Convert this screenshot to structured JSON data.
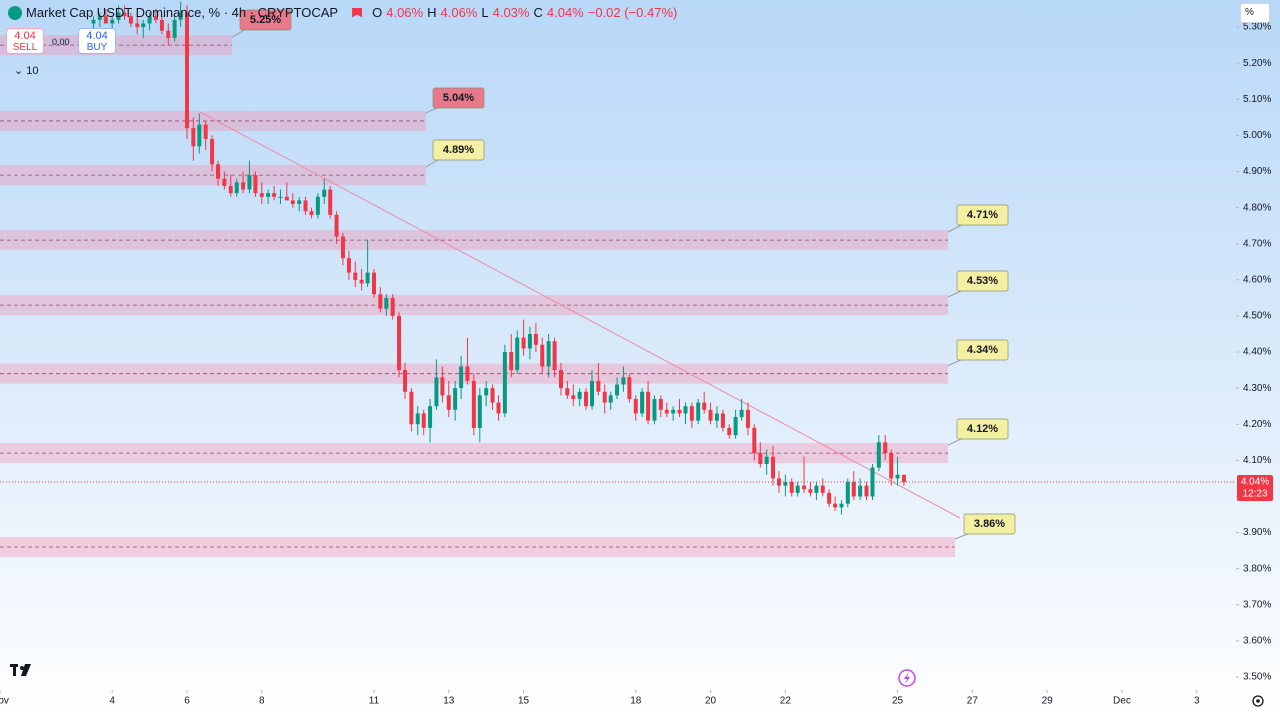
{
  "header": {
    "title": "Market Cap USDT Dominance, % · 4h · CRYPTOCAP",
    "ohlc": [
      "O",
      "4.06%",
      "H",
      "4.06%",
      "L",
      "4.03%",
      "C",
      "4.04%",
      "−0.02 (−0.47%)"
    ]
  },
  "trade": {
    "sell_price": "4.04",
    "sell": "SELL",
    "spread": "0.00",
    "buy_price": "4.04",
    "buy": "BUY",
    "quantity": "10"
  },
  "scale_button": "%",
  "chart_data": {
    "type": "candlestick",
    "up_color": "#089981",
    "down_color": "#f23645",
    "xlim": [
      1,
      34.05
    ],
    "ylim": [
      3.464,
      5.375
    ],
    "xticks": [
      {
        "value": 1,
        "label": "Nov"
      },
      4,
      6,
      8,
      11,
      13,
      15,
      18,
      20,
      22,
      25,
      27,
      29,
      {
        "value": 31,
        "label": "Dec"
      },
      {
        "value": 33,
        "label": "3"
      }
    ],
    "yticks": [
      {
        "value": 5.3,
        "label": "5.30%"
      },
      {
        "value": 5.2,
        "label": "5.20%"
      },
      {
        "value": 5.1,
        "label": "5.10%"
      },
      {
        "value": 5.0,
        "label": "5.00%"
      },
      {
        "value": 4.9,
        "label": "4.90%"
      },
      {
        "value": 4.8,
        "label": "4.80%"
      },
      {
        "value": 4.7,
        "label": "4.70%"
      },
      {
        "value": 4.6,
        "label": "4.60%"
      },
      {
        "value": 4.5,
        "label": "4.50%"
      },
      {
        "value": 4.4,
        "label": "4.40%"
      },
      {
        "value": 4.3,
        "label": "4.30%"
      },
      {
        "value": 4.2,
        "label": "4.20%"
      },
      {
        "value": 4.1,
        "label": "4.10%"
      },
      {
        "value": 4.0,
        "label": "4.00%"
      },
      {
        "value": 3.9,
        "label": "3.90%"
      },
      {
        "value": 3.8,
        "label": "3.80%"
      },
      {
        "value": 3.7,
        "label": "3.70%"
      },
      {
        "value": 3.6,
        "label": "3.60%"
      },
      {
        "value": 3.5,
        "label": "3.50%"
      }
    ],
    "last_price": {
      "value": 4.04,
      "label": "4.04%",
      "countdown": "12:23",
      "color": "#f23645"
    },
    "zones": [
      {
        "value": 5.25,
        "label": "5.25%",
        "color": "#e8798a"
      },
      {
        "value": 5.04,
        "label": "5.04%",
        "color": "#e8798a"
      },
      {
        "value": 4.89,
        "label": "4.89%",
        "color": "#f4f0a2"
      },
      {
        "value": 4.71,
        "label": "4.71%",
        "color": "#f4f0a2"
      },
      {
        "value": 4.53,
        "label": "4.53%",
        "color": "#f4f0a2"
      },
      {
        "value": 4.34,
        "label": "4.34%",
        "color": "#f4f0a2"
      },
      {
        "value": 4.12,
        "label": "4.12%",
        "color": "#f4f0a2"
      },
      {
        "value": 3.86,
        "label": "3.86%",
        "color": "#f4f0a2"
      }
    ],
    "candles": [
      [
        3.5,
        5.31,
        5.33,
        5.29,
        5.32
      ],
      [
        3.67,
        5.32,
        5.34,
        5.3,
        5.33
      ],
      [
        3.83,
        5.33,
        5.35,
        5.31,
        5.31
      ],
      [
        4.0,
        5.31,
        5.33,
        5.29,
        5.32
      ],
      [
        4.17,
        5.32,
        5.36,
        5.31,
        5.34
      ],
      [
        4.33,
        5.34,
        5.36,
        5.32,
        5.33
      ],
      [
        4.5,
        5.33,
        5.34,
        5.3,
        5.31
      ],
      [
        4.67,
        5.31,
        5.33,
        5.28,
        5.3
      ],
      [
        4.83,
        5.3,
        5.32,
        5.27,
        5.31
      ],
      [
        5.0,
        5.31,
        5.34,
        5.29,
        5.33
      ],
      [
        5.17,
        5.33,
        5.35,
        5.31,
        5.32
      ],
      [
        5.33,
        5.32,
        5.33,
        5.28,
        5.29
      ],
      [
        5.5,
        5.29,
        5.31,
        5.25,
        5.27
      ],
      [
        5.67,
        5.27,
        5.33,
        5.26,
        5.32
      ],
      [
        5.83,
        5.32,
        5.37,
        5.3,
        5.34
      ],
      [
        6.0,
        5.34,
        5.36,
        4.99,
        5.02
      ],
      [
        6.17,
        5.02,
        5.05,
        4.93,
        4.97
      ],
      [
        6.33,
        4.97,
        5.06,
        4.95,
        5.03
      ],
      [
        6.5,
        5.03,
        5.04,
        4.96,
        4.99
      ],
      [
        6.67,
        4.99,
        5.0,
        4.9,
        4.92
      ],
      [
        6.83,
        4.92,
        4.93,
        4.86,
        4.88
      ],
      [
        7.0,
        4.88,
        4.9,
        4.85,
        4.86
      ],
      [
        7.17,
        4.86,
        4.89,
        4.83,
        4.84
      ],
      [
        7.33,
        4.84,
        4.88,
        4.83,
        4.87
      ],
      [
        7.5,
        4.87,
        4.9,
        4.84,
        4.85
      ],
      [
        7.67,
        4.85,
        4.93,
        4.84,
        4.89
      ],
      [
        7.83,
        4.89,
        4.9,
        4.83,
        4.84
      ],
      [
        8.0,
        4.84,
        4.87,
        4.81,
        4.83
      ],
      [
        8.17,
        4.83,
        4.85,
        4.81,
        4.84
      ],
      [
        8.33,
        4.84,
        4.86,
        4.82,
        4.83
      ],
      [
        8.5,
        4.83,
        4.85,
        4.81,
        4.83
      ],
      [
        8.67,
        4.83,
        4.87,
        4.82,
        4.82
      ],
      [
        8.83,
        4.82,
        4.84,
        4.8,
        4.81
      ],
      [
        9.0,
        4.81,
        4.83,
        4.79,
        4.82
      ],
      [
        9.17,
        4.82,
        4.83,
        4.78,
        4.79
      ],
      [
        9.33,
        4.79,
        4.8,
        4.77,
        4.78
      ],
      [
        9.5,
        4.78,
        4.84,
        4.77,
        4.83
      ],
      [
        9.67,
        4.83,
        4.88,
        4.81,
        4.85
      ],
      [
        9.83,
        4.85,
        4.86,
        4.77,
        4.78
      ],
      [
        10.0,
        4.78,
        4.79,
        4.7,
        4.72
      ],
      [
        10.17,
        4.72,
        4.73,
        4.64,
        4.66
      ],
      [
        10.33,
        4.66,
        4.68,
        4.6,
        4.62
      ],
      [
        10.5,
        4.62,
        4.65,
        4.58,
        4.6
      ],
      [
        10.67,
        4.6,
        4.63,
        4.57,
        4.59
      ],
      [
        10.83,
        4.59,
        4.71,
        4.58,
        4.62
      ],
      [
        11.0,
        4.62,
        4.63,
        4.55,
        4.56
      ],
      [
        11.17,
        4.56,
        4.58,
        4.51,
        4.52
      ],
      [
        11.33,
        4.52,
        4.56,
        4.5,
        4.55
      ],
      [
        11.5,
        4.55,
        4.56,
        4.49,
        4.5
      ],
      [
        11.67,
        4.5,
        4.51,
        4.33,
        4.35
      ],
      [
        11.83,
        4.35,
        4.37,
        4.27,
        4.29
      ],
      [
        12.0,
        4.29,
        4.3,
        4.18,
        4.2
      ],
      [
        12.17,
        4.2,
        4.25,
        4.17,
        4.23
      ],
      [
        12.33,
        4.23,
        4.24,
        4.17,
        4.19
      ],
      [
        12.5,
        4.19,
        4.27,
        4.15,
        4.25
      ],
      [
        12.67,
        4.25,
        4.38,
        4.24,
        4.33
      ],
      [
        12.83,
        4.33,
        4.36,
        4.26,
        4.28
      ],
      [
        13.0,
        4.28,
        4.32,
        4.22,
        4.24
      ],
      [
        13.17,
        4.24,
        4.32,
        4.21,
        4.3
      ],
      [
        13.33,
        4.3,
        4.39,
        4.27,
        4.36
      ],
      [
        13.5,
        4.36,
        4.44,
        4.31,
        4.32
      ],
      [
        13.67,
        4.32,
        4.34,
        4.17,
        4.19
      ],
      [
        13.83,
        4.19,
        4.3,
        4.15,
        4.28
      ],
      [
        14.0,
        4.28,
        4.32,
        4.25,
        4.3
      ],
      [
        14.17,
        4.3,
        4.31,
        4.24,
        4.26
      ],
      [
        14.33,
        4.26,
        4.28,
        4.21,
        4.23
      ],
      [
        14.5,
        4.23,
        4.42,
        4.22,
        4.4
      ],
      [
        14.67,
        4.4,
        4.45,
        4.33,
        4.35
      ],
      [
        14.83,
        4.35,
        4.46,
        4.34,
        4.44
      ],
      [
        15.0,
        4.44,
        4.49,
        4.39,
        4.41
      ],
      [
        15.17,
        4.41,
        4.47,
        4.38,
        4.45
      ],
      [
        15.33,
        4.45,
        4.48,
        4.4,
        4.42
      ],
      [
        15.5,
        4.42,
        4.44,
        4.34,
        4.36
      ],
      [
        15.67,
        4.36,
        4.45,
        4.33,
        4.43
      ],
      [
        15.83,
        4.43,
        4.44,
        4.33,
        4.35
      ],
      [
        16.0,
        4.35,
        4.37,
        4.28,
        4.3
      ],
      [
        16.17,
        4.3,
        4.32,
        4.27,
        4.28
      ],
      [
        16.33,
        4.28,
        4.31,
        4.25,
        4.27
      ],
      [
        16.5,
        4.27,
        4.3,
        4.25,
        4.29
      ],
      [
        16.67,
        4.29,
        4.3,
        4.24,
        4.25
      ],
      [
        16.83,
        4.25,
        4.35,
        4.24,
        4.32
      ],
      [
        17.0,
        4.32,
        4.37,
        4.28,
        4.29
      ],
      [
        17.17,
        4.29,
        4.31,
        4.23,
        4.26
      ],
      [
        17.33,
        4.26,
        4.29,
        4.24,
        4.28
      ],
      [
        17.5,
        4.28,
        4.33,
        4.27,
        4.31
      ],
      [
        17.67,
        4.31,
        4.36,
        4.29,
        4.33
      ],
      [
        17.83,
        4.33,
        4.34,
        4.26,
        4.27
      ],
      [
        18.0,
        4.27,
        4.28,
        4.21,
        4.23
      ],
      [
        18.17,
        4.23,
        4.3,
        4.22,
        4.29
      ],
      [
        18.33,
        4.29,
        4.32,
        4.2,
        4.21
      ],
      [
        18.5,
        4.21,
        4.28,
        4.2,
        4.27
      ],
      [
        18.67,
        4.27,
        4.28,
        4.22,
        4.24
      ],
      [
        18.83,
        4.24,
        4.26,
        4.22,
        4.23
      ],
      [
        19.0,
        4.23,
        4.25,
        4.21,
        4.24
      ],
      [
        19.17,
        4.24,
        4.27,
        4.22,
        4.23
      ],
      [
        19.33,
        4.23,
        4.26,
        4.2,
        4.25
      ],
      [
        19.5,
        4.25,
        4.26,
        4.19,
        4.21
      ],
      [
        19.67,
        4.21,
        4.27,
        4.2,
        4.26
      ],
      [
        19.83,
        4.26,
        4.29,
        4.23,
        4.24
      ],
      [
        20.0,
        4.24,
        4.26,
        4.2,
        4.21
      ],
      [
        20.17,
        4.21,
        4.25,
        4.19,
        4.23
      ],
      [
        20.33,
        4.23,
        4.24,
        4.18,
        4.19
      ],
      [
        20.5,
        4.19,
        4.2,
        4.16,
        4.17
      ],
      [
        20.67,
        4.17,
        4.24,
        4.16,
        4.22
      ],
      [
        20.83,
        4.22,
        4.27,
        4.21,
        4.24
      ],
      [
        21.0,
        4.24,
        4.26,
        4.17,
        4.19
      ],
      [
        21.17,
        4.19,
        4.2,
        4.1,
        4.12
      ],
      [
        21.33,
        4.12,
        4.15,
        4.08,
        4.09
      ],
      [
        21.5,
        4.09,
        4.13,
        4.06,
        4.11
      ],
      [
        21.67,
        4.11,
        4.14,
        4.03,
        4.05
      ],
      [
        21.83,
        4.05,
        4.07,
        4.01,
        4.03
      ],
      [
        22.0,
        4.03,
        4.06,
        4.0,
        4.04
      ],
      [
        22.17,
        4.04,
        4.05,
        4.0,
        4.01
      ],
      [
        22.33,
        4.01,
        4.04,
        4.0,
        4.03
      ],
      [
        22.5,
        4.03,
        4.11,
        4.01,
        4.02
      ],
      [
        22.67,
        4.02,
        4.04,
        4.0,
        4.01
      ],
      [
        22.83,
        4.01,
        4.04,
        3.99,
        4.03
      ],
      [
        23.0,
        4.03,
        4.05,
        4.0,
        4.01
      ],
      [
        23.17,
        4.01,
        4.02,
        3.97,
        3.98
      ],
      [
        23.33,
        3.98,
        4.0,
        3.96,
        3.97
      ],
      [
        23.5,
        3.97,
        3.99,
        3.95,
        3.98
      ],
      [
        23.67,
        3.98,
        4.05,
        3.97,
        4.04
      ],
      [
        23.83,
        4.04,
        4.07,
        3.99,
        4.0
      ],
      [
        24.0,
        4.0,
        4.05,
        3.99,
        4.03
      ],
      [
        24.17,
        4.03,
        4.04,
        3.99,
        4.0
      ],
      [
        24.33,
        4.0,
        4.09,
        3.99,
        4.08
      ],
      [
        24.5,
        4.08,
        4.17,
        4.07,
        4.15
      ],
      [
        24.67,
        4.15,
        4.17,
        4.1,
        4.12
      ],
      [
        24.83,
        4.12,
        4.13,
        4.03,
        4.05
      ],
      [
        25.0,
        4.05,
        4.11,
        4.03,
        4.06
      ],
      [
        25.17,
        4.06,
        4.06,
        4.03,
        4.04
      ]
    ]
  }
}
